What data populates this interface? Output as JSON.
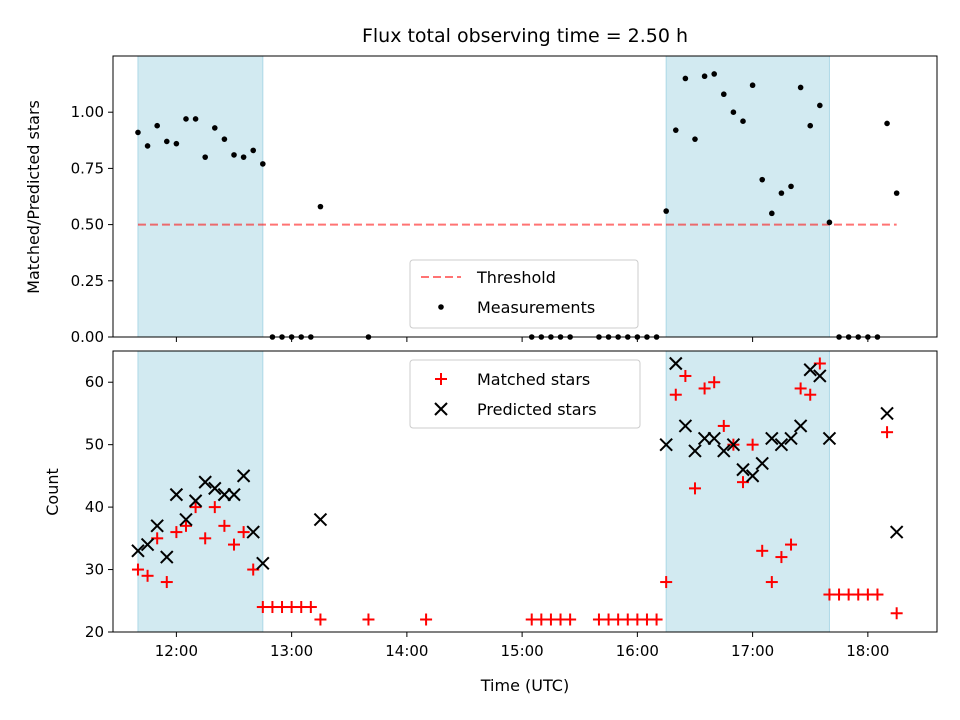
{
  "chart_data": [
    {
      "type": "scatter",
      "title": "Flux total observing time = 2.50 h",
      "xlabel": "",
      "ylabel": "Matched/Predicted stars",
      "xlim": [
        "11:27",
        "18:36"
      ],
      "ylim": [
        0,
        1.25
      ],
      "yticks": [
        "0.00",
        "0.25",
        "0.50",
        "0.75",
        "1.00"
      ],
      "shaded_intervals": [
        [
          "11:40",
          "12:45"
        ],
        [
          "16:15",
          "17:40"
        ]
      ],
      "shade_color": "#add8e6",
      "threshold": {
        "name": "Threshold",
        "y": 0.5,
        "x_start": "11:40",
        "x_end": "18:15",
        "color": "#ff0000",
        "style": "dashed"
      },
      "legend": {
        "placement": "lower-center",
        "entries": [
          "Threshold",
          "Measurements"
        ]
      },
      "series": [
        {
          "name": "Measurements",
          "color": "#000000",
          "marker": "dot",
          "x": [
            "11:40",
            "11:45",
            "11:50",
            "11:55",
            "12:00",
            "12:05",
            "12:10",
            "12:15",
            "12:20",
            "12:25",
            "12:30",
            "12:35",
            "12:40",
            "12:45",
            "12:50",
            "12:55",
            "13:00",
            "13:05",
            "13:10",
            "13:15",
            "13:40",
            "15:05",
            "15:10",
            "15:15",
            "15:20",
            "15:25",
            "15:40",
            "15:45",
            "15:50",
            "15:55",
            "16:00",
            "16:05",
            "16:10",
            "16:15",
            "16:20",
            "16:25",
            "16:30",
            "16:35",
            "16:40",
            "16:45",
            "16:50",
            "16:55",
            "17:00",
            "17:05",
            "17:10",
            "17:15",
            "17:20",
            "17:25",
            "17:30",
            "17:35",
            "17:40",
            "17:45",
            "17:50",
            "17:55",
            "18:00",
            "18:05",
            "18:10",
            "18:15"
          ],
          "y": [
            0.91,
            0.85,
            0.94,
            0.87,
            0.86,
            0.97,
            0.97,
            0.8,
            0.93,
            0.88,
            0.81,
            0.8,
            0.83,
            0.77,
            0.0,
            0.0,
            0.0,
            0.0,
            0.0,
            0.58,
            0.0,
            0.0,
            0.0,
            0.0,
            0.0,
            0.0,
            0.0,
            0.0,
            0.0,
            0.0,
            0.0,
            0.0,
            0.0,
            0.56,
            0.92,
            1.15,
            0.88,
            1.16,
            1.17,
            1.08,
            1.0,
            0.96,
            1.12,
            0.7,
            0.55,
            0.64,
            0.67,
            1.11,
            0.94,
            1.03,
            0.51,
            0.0,
            0.0,
            0.0,
            0.0,
            0.0,
            0.95,
            0.64
          ]
        }
      ]
    },
    {
      "type": "scatter",
      "title": "",
      "xlabel": "Time (UTC)",
      "ylabel": "Count",
      "xlim": [
        "11:27",
        "18:36"
      ],
      "ylim": [
        20,
        65
      ],
      "yticks": [
        "20",
        "30",
        "40",
        "50",
        "60"
      ],
      "xticks": [
        "12:00",
        "13:00",
        "14:00",
        "15:00",
        "16:00",
        "17:00",
        "18:00"
      ],
      "shaded_intervals": [
        [
          "11:40",
          "12:45"
        ],
        [
          "16:15",
          "17:40"
        ]
      ],
      "shade_color": "#add8e6",
      "legend": {
        "placement": "top-center",
        "entries": [
          "Matched stars",
          "Predicted stars"
        ]
      },
      "series": [
        {
          "name": "Matched stars",
          "color": "#ff0000",
          "marker": "plus",
          "x": [
            "11:40",
            "11:45",
            "11:50",
            "11:55",
            "12:00",
            "12:05",
            "12:10",
            "12:15",
            "12:20",
            "12:25",
            "12:30",
            "12:35",
            "12:40",
            "12:45",
            "12:50",
            "12:55",
            "13:00",
            "13:05",
            "13:10",
            "13:15",
            "13:40",
            "14:10",
            "15:05",
            "15:10",
            "15:15",
            "15:20",
            "15:25",
            "15:40",
            "15:45",
            "15:50",
            "15:55",
            "16:00",
            "16:05",
            "16:10",
            "16:15",
            "16:20",
            "16:25",
            "16:30",
            "16:35",
            "16:40",
            "16:45",
            "16:50",
            "16:55",
            "17:00",
            "17:05",
            "17:10",
            "17:15",
            "17:20",
            "17:25",
            "17:30",
            "17:35",
            "17:40",
            "17:45",
            "17:50",
            "17:55",
            "18:00",
            "18:05",
            "18:10",
            "18:15"
          ],
          "y": [
            30,
            29,
            35,
            28,
            36,
            37,
            40,
            35,
            40,
            37,
            34,
            36,
            30,
            24,
            24,
            24,
            24,
            24,
            24,
            22,
            22,
            22,
            22,
            22,
            22,
            22,
            22,
            22,
            22,
            22,
            22,
            22,
            22,
            22,
            28,
            58,
            61,
            43,
            59,
            60,
            53,
            50,
            44,
            50,
            33,
            28,
            32,
            34,
            59,
            58,
            63,
            26,
            26,
            26,
            26,
            26,
            26,
            52,
            23
          ]
        },
        {
          "name": "Predicted stars",
          "color": "#000000",
          "marker": "x",
          "x": [
            "11:40",
            "11:45",
            "11:50",
            "11:55",
            "12:00",
            "12:05",
            "12:10",
            "12:15",
            "12:20",
            "12:25",
            "12:30",
            "12:35",
            "12:40",
            "12:45",
            "13:15",
            "16:15",
            "16:20",
            "16:25",
            "16:30",
            "16:35",
            "16:40",
            "16:45",
            "16:50",
            "16:55",
            "17:00",
            "17:05",
            "17:10",
            "17:15",
            "17:20",
            "17:25",
            "17:30",
            "17:35",
            "17:40",
            "18:10",
            "18:15"
          ],
          "y": [
            33,
            34,
            37,
            32,
            42,
            38,
            41,
            44,
            43,
            42,
            42,
            45,
            36,
            31,
            38,
            50,
            63,
            53,
            49,
            51,
            51,
            49,
            50,
            46,
            45,
            47,
            51,
            50,
            51,
            53,
            62,
            61,
            51,
            55,
            36
          ]
        }
      ]
    }
  ]
}
